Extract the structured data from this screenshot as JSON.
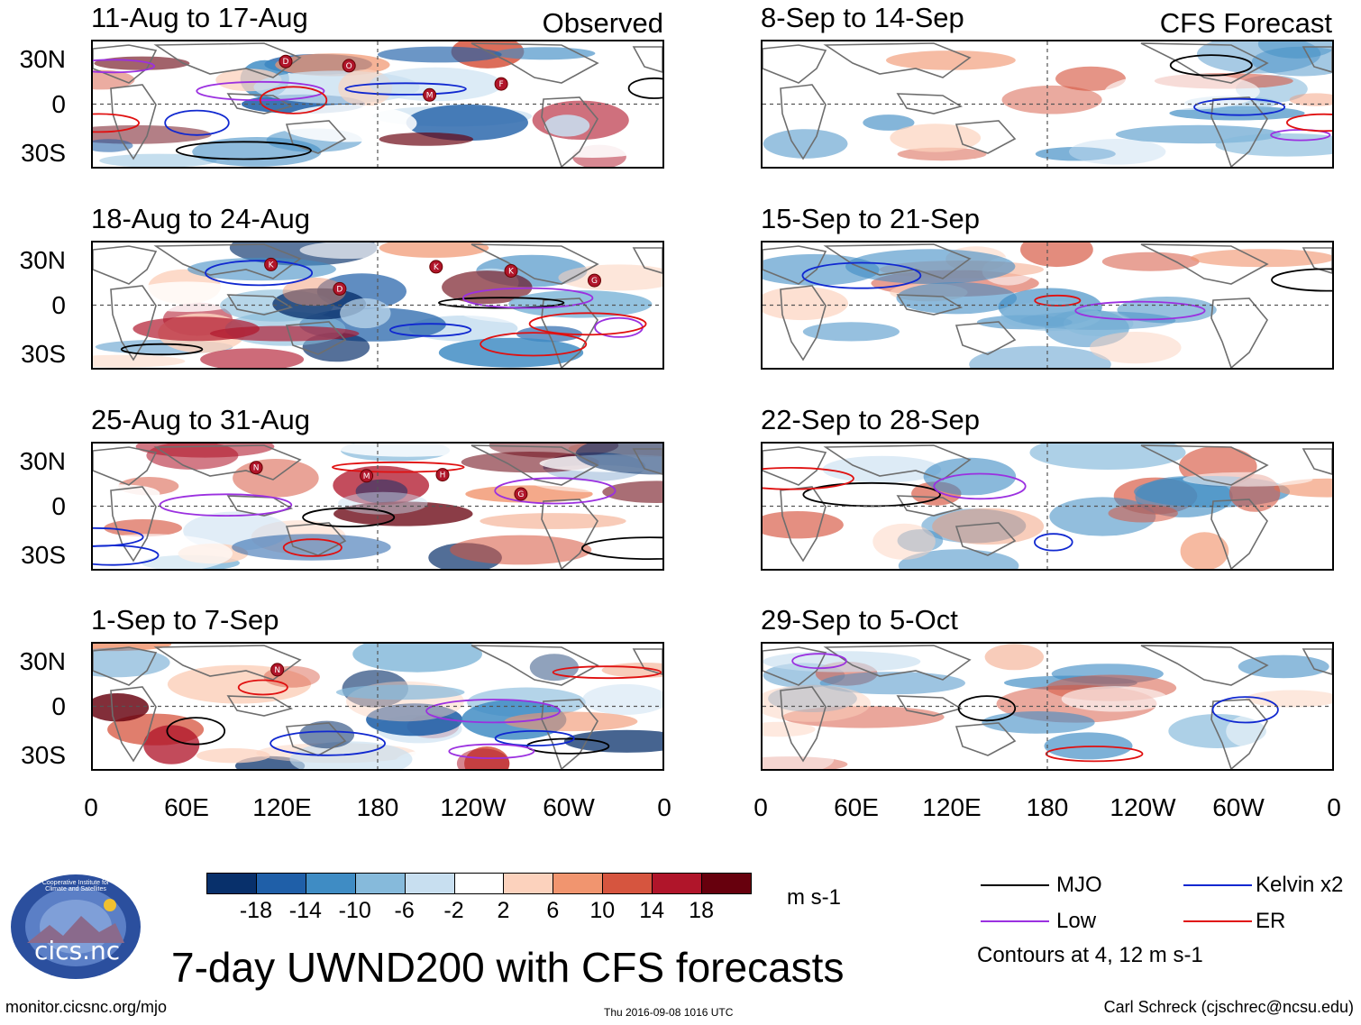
{
  "chart_data": {
    "type": "heatmap",
    "title": "7-day UWND200 with CFS forecasts",
    "variable": "200-hPa zonal wind anomaly",
    "units": "m s-1",
    "x_axis": {
      "range": [
        0,
        360
      ],
      "tick_labels": [
        "0",
        "60E",
        "120E",
        "180",
        "120W",
        "60W",
        "0"
      ]
    },
    "y_axis": {
      "range": [
        -40,
        40
      ],
      "tick_labels": [
        "30N",
        "0",
        "30S"
      ]
    },
    "colorbar": {
      "levels": [
        -18,
        -14,
        -10,
        -6,
        -2,
        2,
        6,
        10,
        14,
        18
      ],
      "labels": [
        "-18",
        "-14",
        "-10",
        "-6",
        "-2",
        "2",
        "6",
        "10",
        "14",
        "18"
      ],
      "colors": [
        "#08306b",
        "#1f5fa8",
        "#3f8cc4",
        "#86badb",
        "#c8dff0",
        "#ffffff",
        "#fcd2bd",
        "#f1956f",
        "#d6553f",
        "#b0152a",
        "#67000d"
      ]
    },
    "contour_note": "Contours at 4, 12 m s-1",
    "legend": [
      {
        "name": "MJO",
        "color": "#000000"
      },
      {
        "name": "Kelvin x2",
        "color": "#1028d0"
      },
      {
        "name": "Low",
        "color": "#9b30e0"
      },
      {
        "name": "ER",
        "color": "#e01010"
      }
    ],
    "panels": [
      {
        "period": "11-Aug to 17-Aug",
        "source": "Observed",
        "column": "left",
        "tag": "Observed",
        "storms": [
          "D",
          "O",
          "M",
          "F"
        ]
      },
      {
        "period": "18-Aug to 24-Aug",
        "source": "Observed",
        "column": "left",
        "tag": "",
        "storms": [
          "K",
          "D",
          "K",
          "K",
          "G"
        ]
      },
      {
        "period": "25-Aug to 31-Aug",
        "source": "Observed",
        "column": "left",
        "tag": "",
        "storms": [
          "N",
          "M",
          "H",
          "G"
        ]
      },
      {
        "period": "1-Sep to 7-Sep",
        "source": "Observed",
        "column": "left",
        "tag": "",
        "storms": [
          "N"
        ]
      },
      {
        "period": "8-Sep to 14-Sep",
        "source": "CFS Forecast",
        "column": "right",
        "tag": "CFS Forecast",
        "storms": []
      },
      {
        "period": "15-Sep to 21-Sep",
        "source": "CFS Forecast",
        "column": "right",
        "tag": "",
        "storms": []
      },
      {
        "period": "22-Sep to 28-Sep",
        "source": "CFS Forecast",
        "column": "right",
        "tag": "",
        "storms": []
      },
      {
        "period": "29-Sep to 5-Oct",
        "source": "CFS Forecast",
        "column": "right",
        "tag": "",
        "storms": []
      }
    ]
  },
  "footer": {
    "logo_text": "cics.nc",
    "logo_ring_text": "Cooperative Institute for Climate and Satellites",
    "url": "monitor.cicsnc.org/mjo",
    "timestamp": "Thu 2016-09-08 1016 UTC",
    "author": "Carl Schreck (cjschrec@ncsu.edu)"
  },
  "colors": {
    "accent_blue": "#1f5fa8",
    "accent_red": "#b0152a",
    "logo_bg": "#2b4f9e"
  }
}
